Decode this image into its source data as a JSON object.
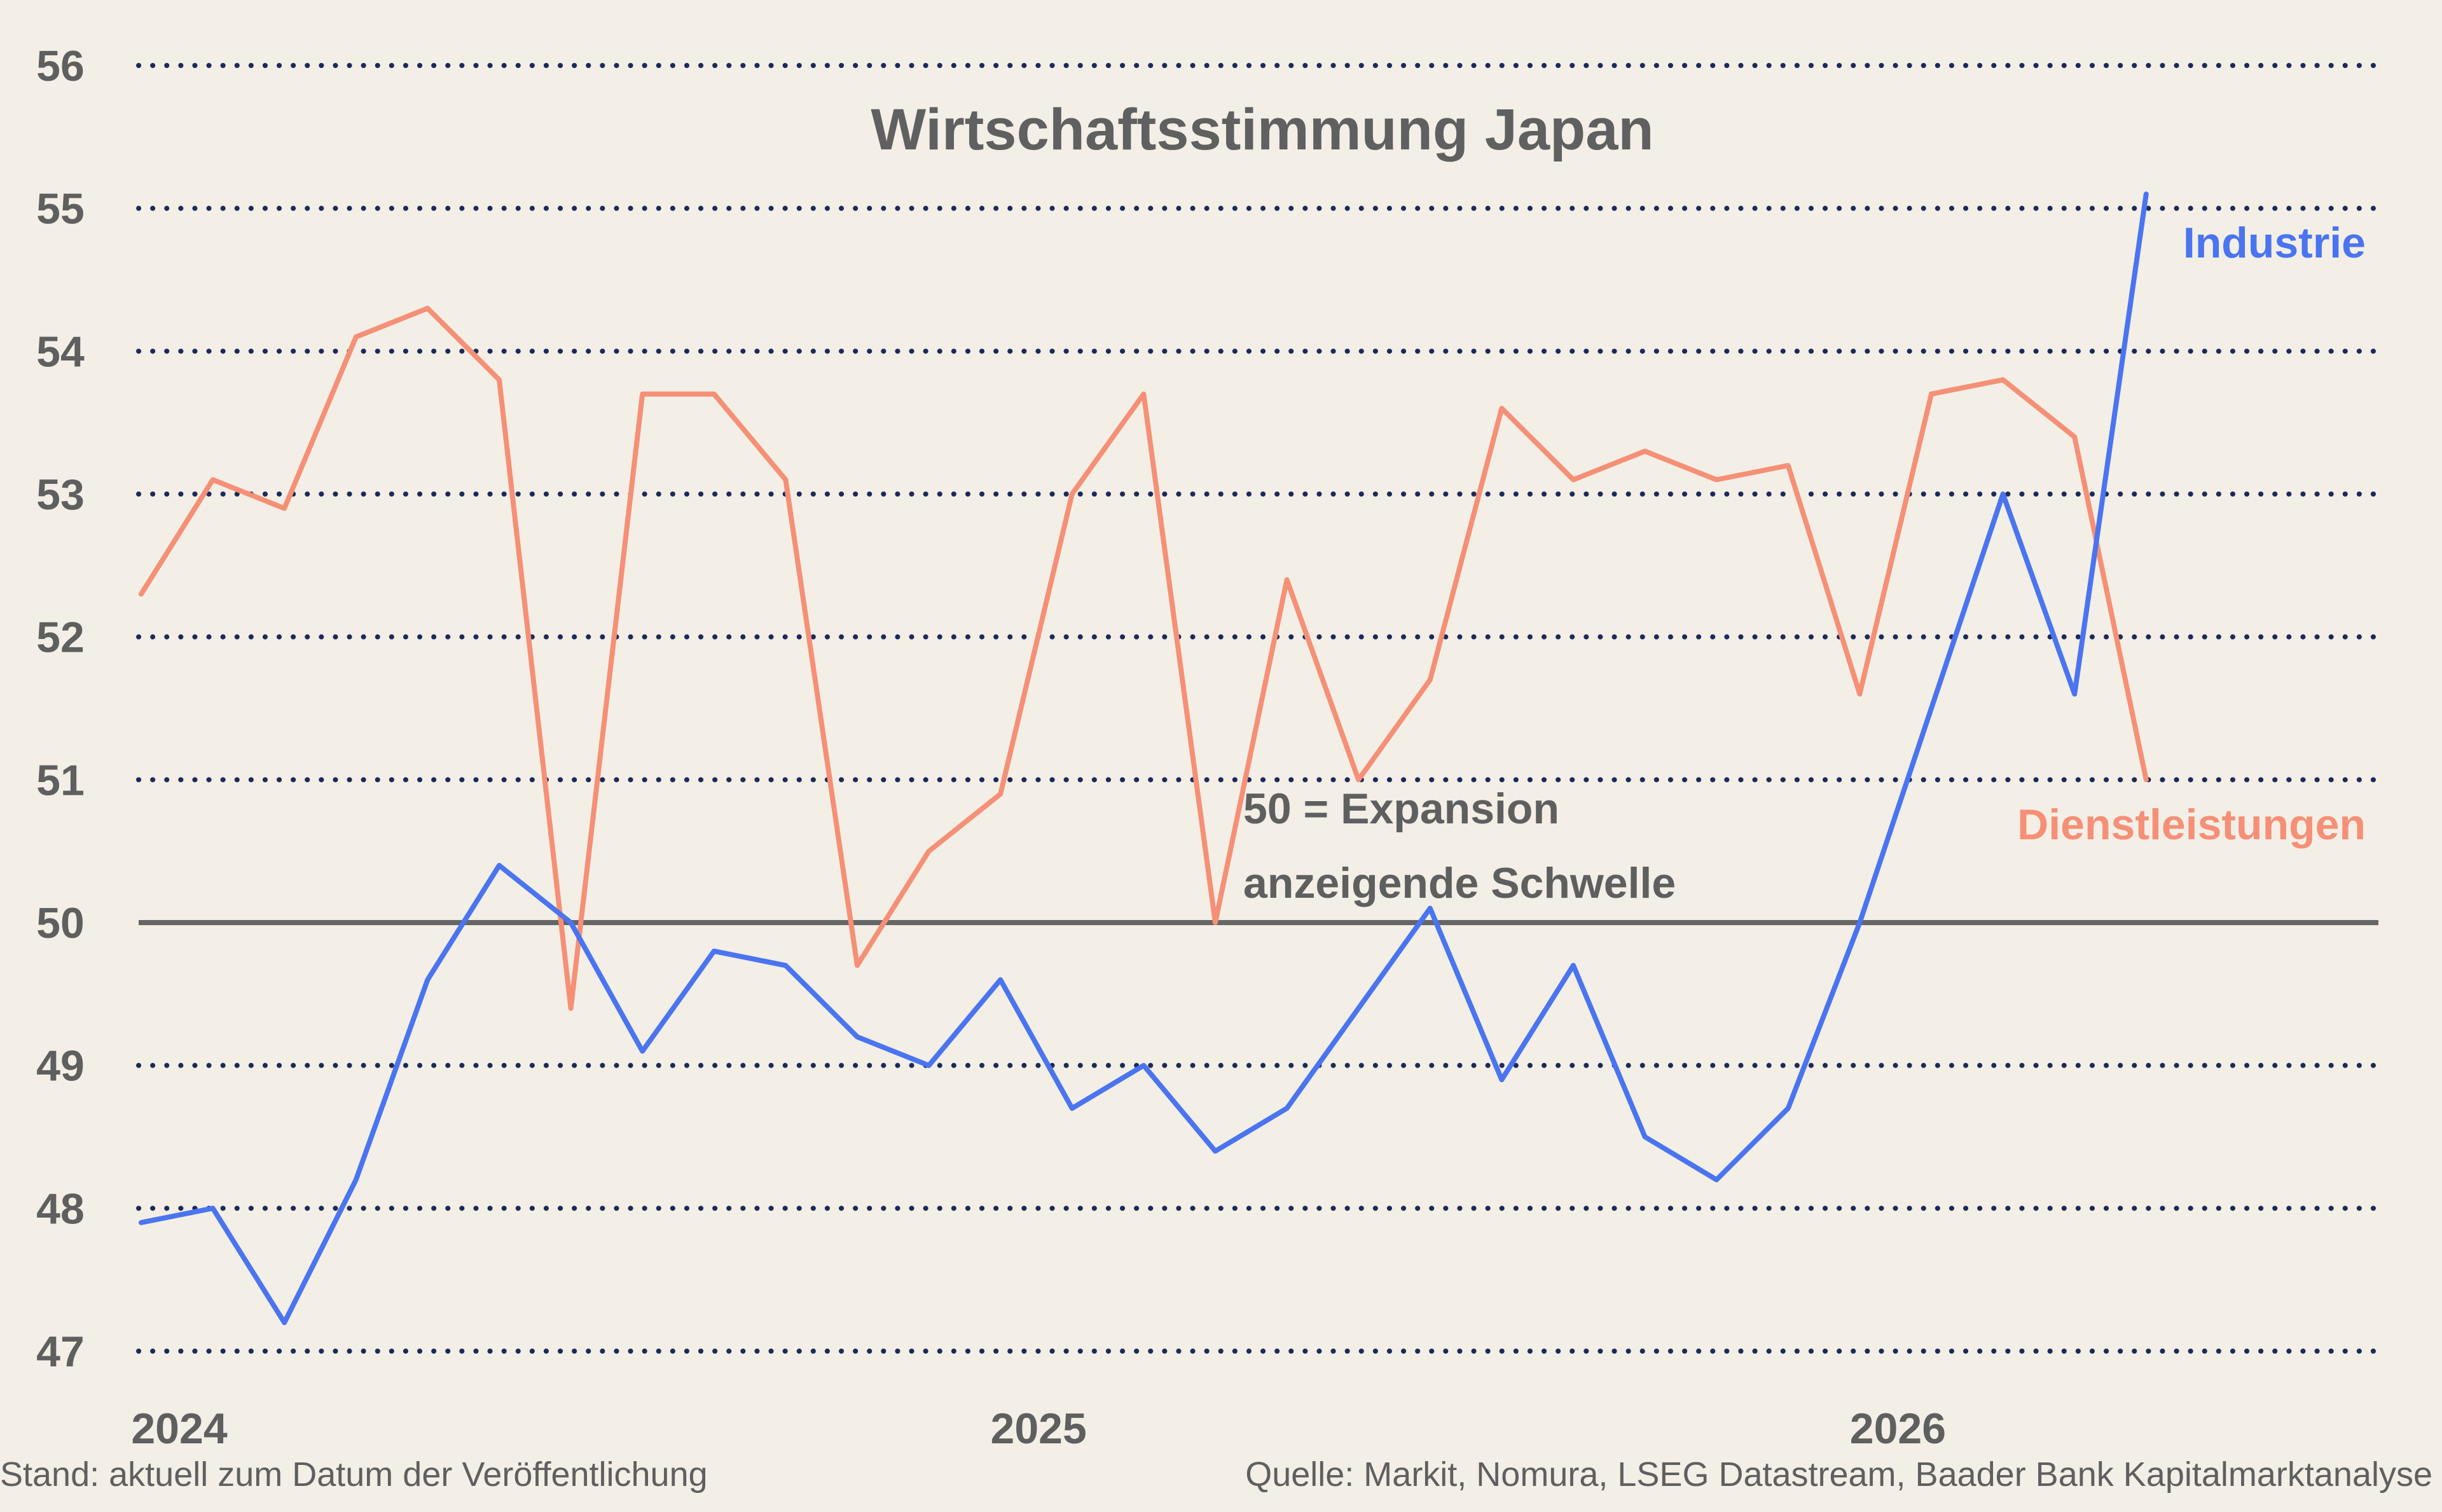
{
  "chart_data": {
    "type": "line",
    "title": "Wirtschaftsstimmung Japan",
    "xlabel": "",
    "ylabel": "",
    "ylim": [
      47,
      56
    ],
    "yticks": [
      47,
      48,
      49,
      50,
      51,
      52,
      53,
      54,
      55,
      56
    ],
    "ytick_labels": [
      "47",
      "48",
      "49",
      "50",
      "51",
      "52",
      "53",
      "54",
      "55",
      "56"
    ],
    "grid": "dotted horizontal",
    "xtick_labels": [
      {
        "label": "2024",
        "x": "2024-01"
      },
      {
        "label": "2025",
        "x": "2025-01"
      },
      {
        "label": "2026",
        "x": "2026-01"
      }
    ],
    "x": [
      "2024-01",
      "2024-02",
      "2024-03",
      "2024-04",
      "2024-05",
      "2024-06",
      "2024-07",
      "2024-08",
      "2024-09",
      "2024-10",
      "2024-11",
      "2024-12",
      "2025-01",
      "2025-02",
      "2025-03",
      "2025-04",
      "2025-05",
      "2025-06",
      "2025-07",
      "2025-08",
      "2025-09",
      "2025-10",
      "2025-11",
      "2025-12",
      "2026-01",
      "2026-02",
      "2026-03",
      "2026-04",
      "2026-05"
    ],
    "series": [
      {
        "name": "Industrie",
        "color": "#4a74f0",
        "values": [
          47.9,
          48.0,
          47.2,
          48.2,
          49.6,
          50.4,
          50.0,
          49.1,
          49.8,
          49.7,
          49.2,
          49.0,
          49.6,
          48.7,
          49.0,
          48.4,
          48.7,
          49.4,
          50.1,
          48.9,
          49.7,
          48.5,
          48.2,
          48.7,
          50.0,
          51.5,
          53.0,
          51.6,
          55.1
        ]
      },
      {
        "name": "Dienstleistungen",
        "color": "#f59077",
        "values": [
          52.3,
          53.1,
          52.9,
          54.1,
          54.3,
          53.8,
          49.4,
          53.7,
          53.7,
          53.1,
          49.7,
          50.5,
          50.9,
          53.0,
          53.7,
          50.0,
          52.4,
          51.0,
          51.7,
          53.6,
          53.1,
          53.3,
          53.1,
          53.2,
          51.6,
          53.7,
          53.8,
          53.4,
          51.0
        ]
      }
    ],
    "threshold": {
      "value": 50,
      "color": "#666666",
      "annotation_line1": "50 = Expansion",
      "annotation_line2": "anzeigende Schwelle"
    }
  },
  "footer": {
    "left": "Stand: aktuell zum Datum der Veröffentlichung",
    "right": "Quelle: Markit, Nomura, LSEG Datastream, Baader Bank Kapitalmarktanalyse"
  }
}
